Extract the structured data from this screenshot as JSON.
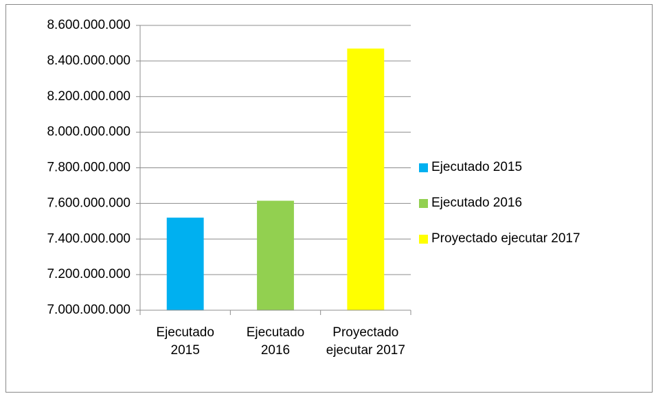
{
  "chart_data": {
    "type": "bar",
    "categories": [
      "Ejecutado 2015",
      "Ejecutado 2016",
      "Proyectado ejecutar 2017"
    ],
    "values": [
      7520000000,
      7615000000,
      8470000000
    ],
    "colors": [
      "#00b0f0",
      "#92d050",
      "#ffff00"
    ],
    "ylim": [
      7000000000,
      8600000000
    ],
    "yticks": [
      {
        "value": 7000000000,
        "label": "7.000.000.000"
      },
      {
        "value": 7200000000,
        "label": "7.200.000.000"
      },
      {
        "value": 7400000000,
        "label": "7.400.000.000"
      },
      {
        "value": 7600000000,
        "label": "7.600.000.000"
      },
      {
        "value": 7800000000,
        "label": "7.800.000.000"
      },
      {
        "value": 8000000000,
        "label": "8.000.000.000"
      },
      {
        "value": 8200000000,
        "label": "8.200.000.000"
      },
      {
        "value": 8400000000,
        "label": "8.400.000.000"
      },
      {
        "value": 8600000000,
        "label": "8.600.000.000"
      }
    ],
    "grid": true,
    "legend": "right"
  }
}
